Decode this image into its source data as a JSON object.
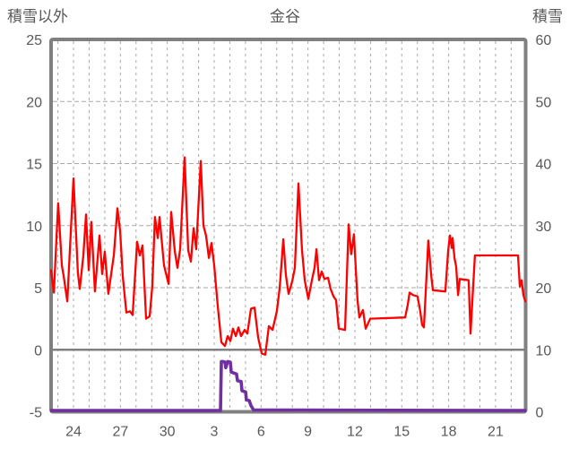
{
  "chart_data": {
    "type": "line",
    "title": "金谷",
    "left_axis": {
      "label": "積雪以外",
      "min": -5,
      "max": 25,
      "tick_step": 5,
      "ticks": [
        25,
        20,
        15,
        10,
        5,
        0,
        -5
      ]
    },
    "right_axis": {
      "label": "積雪",
      "min": 0,
      "max": 60,
      "tick_step": 10,
      "ticks": [
        60,
        50,
        40,
        30,
        20,
        10,
        0
      ]
    },
    "x_axis": {
      "tick_labels": [
        "24",
        "27",
        "30",
        "3",
        "6",
        "9",
        "12",
        "15",
        "18",
        "21"
      ],
      "tick_day_positions": [
        1,
        4,
        7,
        10,
        13,
        16,
        19,
        22,
        25,
        28
      ],
      "days_span": 30,
      "minor_grid_every_day": true
    },
    "grid": {
      "h_dashed_at_left_values": [
        20,
        15,
        10,
        5
      ],
      "zero_line_left_value": 0,
      "vertical_dashed": true
    },
    "colors": {
      "series_left": "#ff0000",
      "series_right": "#7030a0",
      "border": "#808080",
      "zero_line": "#808080",
      "grid": "#a8a8a8",
      "text": "#595959"
    },
    "series": [
      {
        "name": "積雪以外",
        "axis": "left",
        "color": "#ff0000",
        "points": [
          [
            -0.44,
            6.4
          ],
          [
            -0.26,
            4.6
          ],
          [
            0.02,
            11.8
          ],
          [
            0.25,
            6.8
          ],
          [
            0.37,
            5.9
          ],
          [
            0.6,
            3.9
          ],
          [
            1.0,
            13.8
          ],
          [
            1.28,
            6.2
          ],
          [
            1.4,
            4.9
          ],
          [
            1.63,
            7.6
          ],
          [
            1.8,
            10.9
          ],
          [
            1.97,
            6.4
          ],
          [
            2.14,
            10.3
          ],
          [
            2.37,
            4.7
          ],
          [
            2.66,
            9.2
          ],
          [
            2.83,
            6.1
          ],
          [
            3.0,
            7.9
          ],
          [
            3.23,
            4.5
          ],
          [
            3.58,
            7.6
          ],
          [
            3.81,
            11.4
          ],
          [
            3.98,
            9.6
          ],
          [
            4.15,
            5.9
          ],
          [
            4.38,
            3.0
          ],
          [
            4.61,
            3.1
          ],
          [
            4.78,
            2.8
          ],
          [
            5.07,
            8.7
          ],
          [
            5.24,
            7.6
          ],
          [
            5.41,
            8.4
          ],
          [
            5.64,
            2.5
          ],
          [
            5.87,
            2.7
          ],
          [
            6.04,
            5.1
          ],
          [
            6.21,
            10.7
          ],
          [
            6.39,
            9.0
          ],
          [
            6.5,
            10.7
          ],
          [
            6.79,
            6.8
          ],
          [
            7.08,
            5.3
          ],
          [
            7.25,
            11.1
          ],
          [
            7.48,
            7.9
          ],
          [
            7.65,
            6.6
          ],
          [
            7.82,
            8.1
          ],
          [
            8.11,
            15.5
          ],
          [
            8.34,
            8.0
          ],
          [
            8.51,
            7.1
          ],
          [
            8.68,
            9.8
          ],
          [
            8.85,
            8.1
          ],
          [
            9.14,
            15.2
          ],
          [
            9.31,
            10.0
          ],
          [
            9.48,
            9.2
          ],
          [
            9.66,
            7.4
          ],
          [
            9.83,
            8.6
          ],
          [
            10.0,
            6.8
          ],
          [
            10.23,
            3.5
          ],
          [
            10.46,
            0.6
          ],
          [
            10.69,
            0.3
          ],
          [
            10.86,
            1.1
          ],
          [
            11.03,
            0.7
          ],
          [
            11.2,
            1.7
          ],
          [
            11.38,
            1.1
          ],
          [
            11.55,
            1.8
          ],
          [
            11.72,
            1.1
          ],
          [
            11.95,
            1.6
          ],
          [
            12.12,
            1.3
          ],
          [
            12.35,
            3.3
          ],
          [
            12.58,
            3.4
          ],
          [
            12.81,
            1.0
          ],
          [
            13.04,
            -0.3
          ],
          [
            13.27,
            -0.4
          ],
          [
            13.5,
            1.9
          ],
          [
            13.73,
            1.6
          ],
          [
            14.01,
            3.1
          ],
          [
            14.19,
            5.0
          ],
          [
            14.42,
            8.9
          ],
          [
            14.59,
            6.0
          ],
          [
            14.76,
            4.5
          ],
          [
            14.99,
            5.5
          ],
          [
            15.16,
            6.6
          ],
          [
            15.39,
            13.4
          ],
          [
            15.62,
            8.0
          ],
          [
            15.79,
            5.6
          ],
          [
            16.02,
            4.1
          ],
          [
            16.25,
            5.6
          ],
          [
            16.42,
            6.6
          ],
          [
            16.54,
            8.1
          ],
          [
            16.71,
            5.6
          ],
          [
            16.88,
            6.3
          ],
          [
            17.05,
            5.7
          ],
          [
            17.28,
            5.8
          ],
          [
            17.45,
            4.9
          ],
          [
            17.63,
            4.3
          ],
          [
            17.8,
            4.0
          ],
          [
            17.97,
            1.7
          ],
          [
            18.37,
            1.6
          ],
          [
            18.6,
            10.1
          ],
          [
            18.77,
            7.7
          ],
          [
            18.94,
            9.3
          ],
          [
            19.17,
            4.0
          ],
          [
            19.29,
            2.6
          ],
          [
            19.52,
            3.2
          ],
          [
            19.69,
            1.7
          ],
          [
            19.98,
            2.5
          ],
          [
            22.22,
            2.6
          ],
          [
            22.38,
            3.6
          ],
          [
            22.5,
            4.6
          ],
          [
            22.73,
            4.4
          ],
          [
            23.01,
            4.3
          ],
          [
            23.18,
            3.1
          ],
          [
            23.3,
            2.0
          ],
          [
            23.42,
            1.8
          ],
          [
            23.7,
            8.8
          ],
          [
            23.88,
            6.0
          ],
          [
            23.99,
            4.8
          ],
          [
            24.79,
            4.7
          ],
          [
            24.97,
            8.0
          ],
          [
            25.08,
            9.2
          ],
          [
            25.2,
            8.2
          ],
          [
            25.25,
            9.0
          ],
          [
            25.37,
            7.4
          ],
          [
            25.48,
            6.7
          ],
          [
            25.6,
            4.4
          ],
          [
            25.71,
            5.7
          ],
          [
            26.28,
            5.6
          ],
          [
            26.4,
            1.3
          ],
          [
            26.68,
            7.6
          ],
          [
            29.44,
            7.6
          ],
          [
            29.55,
            5.1
          ],
          [
            29.67,
            5.6
          ],
          [
            29.78,
            4.4
          ],
          [
            29.9,
            3.9
          ]
        ]
      },
      {
        "name": "積雪",
        "axis": "right",
        "color": "#7030a0",
        "points": [
          [
            -0.44,
            0.2
          ],
          [
            10.4,
            0.2
          ],
          [
            10.46,
            8.1
          ],
          [
            10.57,
            8.1
          ],
          [
            10.69,
            8.0
          ],
          [
            10.74,
            7.1
          ],
          [
            10.86,
            8.1
          ],
          [
            11.03,
            8.0
          ],
          [
            11.09,
            6.4
          ],
          [
            11.43,
            6.1
          ],
          [
            11.49,
            5.0
          ],
          [
            11.72,
            4.9
          ],
          [
            11.78,
            3.4
          ],
          [
            12.01,
            3.2
          ],
          [
            12.06,
            1.9
          ],
          [
            12.24,
            1.8
          ],
          [
            12.35,
            1.0
          ],
          [
            12.52,
            0.3
          ],
          [
            29.9,
            0.2
          ]
        ]
      }
    ]
  }
}
